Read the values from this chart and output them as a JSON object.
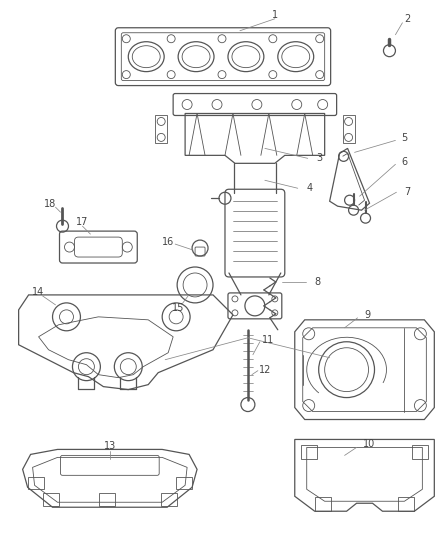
{
  "background_color": "#ffffff",
  "line_color": "#555555",
  "label_color": "#444444",
  "figsize": [
    4.38,
    5.33
  ],
  "dpi": 100
}
